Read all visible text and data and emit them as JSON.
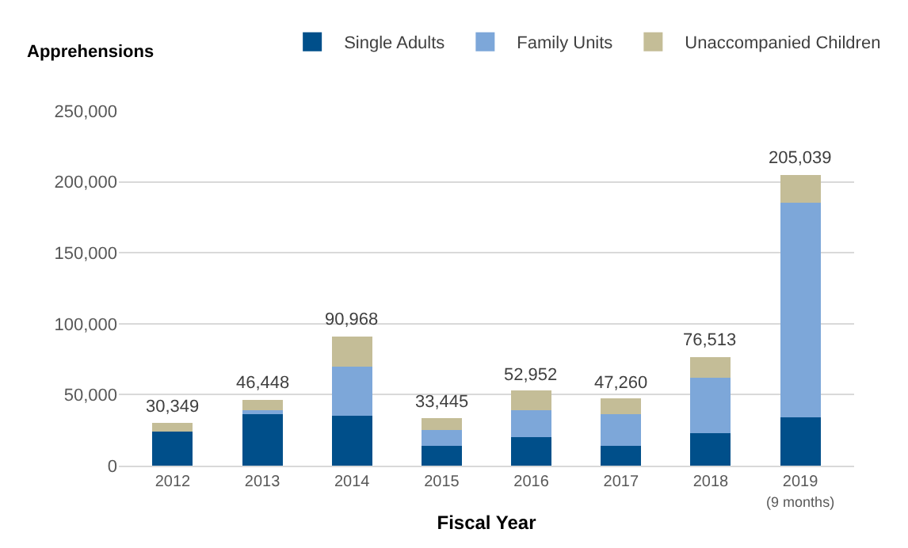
{
  "chart_data": {
    "type": "bar",
    "stacked": true,
    "ylabel": "Apprehensions",
    "xlabel": "Fiscal Year",
    "categories": [
      "2012",
      "2013",
      "2014",
      "2015",
      "2016",
      "2017",
      "2018",
      "2019\n(9 months)"
    ],
    "series": [
      {
        "name": "Single Adults",
        "color": "#004f8a",
        "values": [
          24000,
          36000,
          35000,
          14000,
          20000,
          14000,
          23000,
          34000
        ]
      },
      {
        "name": "Family Units",
        "color": "#7da7d9",
        "values": [
          0,
          3000,
          35000,
          11000,
          19000,
          22000,
          39000,
          151000
        ]
      },
      {
        "name": "Unaccompanied Children",
        "color": "#c4bd97",
        "values": [
          6349,
          7448,
          20968,
          8445,
          13952,
          11260,
          14513,
          20039
        ]
      }
    ],
    "totals": [
      "30,349",
      "46,448",
      "90,968",
      "33,445",
      "52,952",
      "47,260",
      "76,513",
      "205,039"
    ],
    "ylim": [
      0,
      250000
    ],
    "yticks": [
      {
        "value": 0,
        "label": "0"
      },
      {
        "value": 50000,
        "label": "50,000"
      },
      {
        "value": 100000,
        "label": "100,000"
      },
      {
        "value": 150000,
        "label": "150,000"
      },
      {
        "value": 200000,
        "label": "200,000"
      },
      {
        "value": 250000,
        "label": "250,000"
      }
    ],
    "grid": "y",
    "legend": "top"
  }
}
